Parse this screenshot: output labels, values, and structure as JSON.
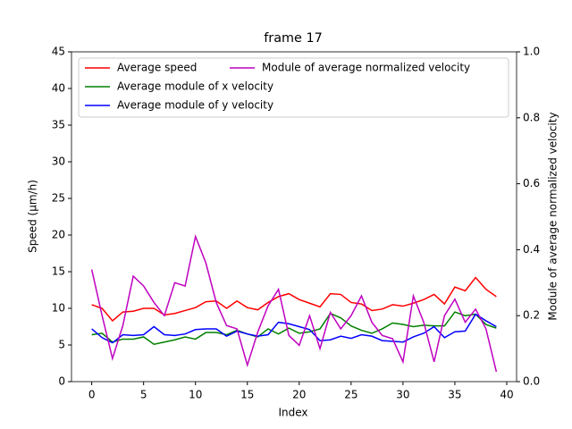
{
  "chart_data": {
    "type": "line",
    "title": "frame 17",
    "x_label": "Index",
    "y_label": "Speed (μm/h)",
    "y2_label": "Module of average normalized velocity",
    "x": [
      0,
      1,
      2,
      3,
      4,
      5,
      6,
      7,
      8,
      9,
      10,
      11,
      12,
      13,
      14,
      15,
      16,
      17,
      18,
      19,
      20,
      21,
      22,
      23,
      24,
      25,
      26,
      27,
      28,
      29,
      30,
      31,
      32,
      33,
      34,
      35,
      36,
      37,
      38,
      39
    ],
    "series": [
      {
        "name": "Average speed",
        "color": "#ff0000",
        "values": [
          10.5,
          10.0,
          8.3,
          9.5,
          9.6,
          10.0,
          10.0,
          9.1,
          9.3,
          9.7,
          10.1,
          10.9,
          11.0,
          10.0,
          11.0,
          10.1,
          9.8,
          10.8,
          11.6,
          12.0,
          11.2,
          10.7,
          10.2,
          12.0,
          11.9,
          10.8,
          10.6,
          9.7,
          9.9,
          10.5,
          10.3,
          10.7,
          11.2,
          11.9,
          10.6,
          12.9,
          12.4,
          14.2,
          12.6,
          11.6
        ]
      },
      {
        "name": "Average module of x velocity",
        "color": "#008000",
        "values": [
          6.4,
          6.6,
          5.4,
          5.8,
          5.8,
          6.1,
          5.1,
          5.4,
          5.7,
          6.1,
          5.8,
          6.7,
          6.7,
          6.4,
          7.0,
          6.5,
          6.1,
          7.2,
          6.5,
          7.3,
          6.6,
          6.8,
          7.2,
          9.3,
          8.7,
          7.6,
          7.0,
          6.6,
          7.2,
          8.0,
          7.8,
          7.5,
          7.7,
          7.6,
          7.6,
          9.5,
          9.0,
          9.2,
          7.8,
          7.3
        ]
      },
      {
        "name": "Average module of y velocity",
        "color": "#0000ff",
        "values": [
          7.2,
          6.0,
          5.3,
          6.4,
          6.3,
          6.4,
          7.5,
          6.4,
          6.3,
          6.5,
          7.1,
          7.2,
          7.2,
          6.2,
          6.9,
          6.5,
          6.2,
          6.4,
          8.1,
          7.9,
          7.5,
          7.1,
          5.6,
          5.7,
          6.2,
          5.9,
          6.4,
          6.2,
          5.6,
          5.5,
          5.4,
          6.1,
          6.6,
          7.5,
          6.0,
          6.8,
          6.9,
          9.2,
          8.3,
          7.5
        ]
      },
      {
        "name": "Module of average normalized velocity",
        "color": "#bf00bf",
        "axis": "y2",
        "values": [
          0.34,
          0.2,
          0.07,
          0.17,
          0.32,
          0.29,
          0.24,
          0.2,
          0.3,
          0.29,
          0.44,
          0.36,
          0.24,
          0.17,
          0.16,
          0.05,
          0.15,
          0.23,
          0.28,
          0.14,
          0.11,
          0.2,
          0.1,
          0.21,
          0.16,
          0.2,
          0.26,
          0.18,
          0.14,
          0.13,
          0.06,
          0.26,
          0.18,
          0.06,
          0.2,
          0.25,
          0.18,
          0.22,
          0.16,
          0.03
        ]
      }
    ],
    "xlim": [
      -1.95,
      40.95
    ],
    "xticks": [
      0,
      5,
      10,
      15,
      20,
      25,
      30,
      35,
      40
    ],
    "ylim": [
      0,
      45
    ],
    "yticks": [
      0,
      5,
      10,
      15,
      20,
      25,
      30,
      35,
      40,
      45
    ],
    "y2lim": [
      0,
      1
    ],
    "y2ticks": [
      {
        "value": 0,
        "label": "0.0"
      },
      0.2,
      0.4,
      0.6,
      0.8,
      {
        "value": 1,
        "label": "1.0"
      }
    ],
    "grid": false,
    "legend": "upper left"
  }
}
